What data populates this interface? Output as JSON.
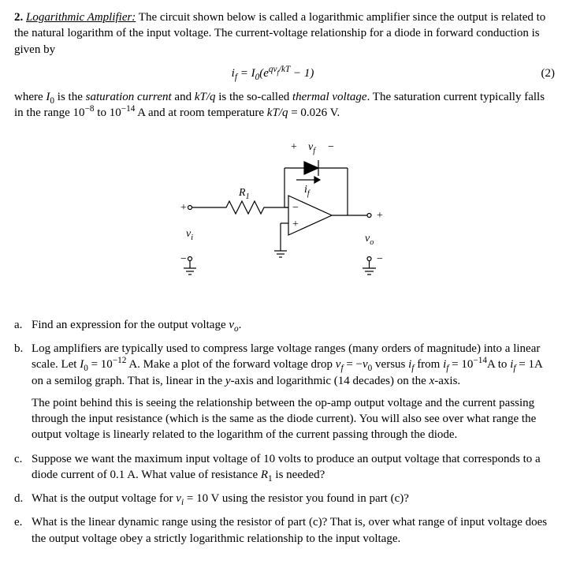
{
  "problem": {
    "number": "2.",
    "title_ul_it": "Logarithmic Amplifier:",
    "intro_a": " The circuit shown below is called a logarithmic amplifier since the output is related to the natural logarithm of the input voltage.  The current-voltage relationship for a diode in forward conduction is given by",
    "equation_html": "i<sub>f</sub> = I<sub>0</sub>(e<sup>qv<sub>f</sub>/kT</sup> − 1)",
    "equation_number": "(2)",
    "intro_b_html": "where <span class=\"it\">I</span><sub>0</sub> is the <span class=\"it\">saturation current</span> and <span class=\"it\">kT/q</span> is the so-called <span class=\"it\">thermal voltage</span>.  The saturation current typically falls in the range 10<sup>−8</sup> to 10<sup>−14</sup> A and at room temperature <span class=\"it\">kT/q</span> = 0.026 V."
  },
  "diagram": {
    "labels": {
      "vf_plus": "+",
      "vf": "v",
      "vf_sub": "f",
      "vf_minus": "−",
      "if": "i",
      "if_sub": "f",
      "R1": "R",
      "R1_sub": "1",
      "vi_plus": "+",
      "vi": "v",
      "vi_sub": "i",
      "vi_minus": "−",
      "vo_plus": "+",
      "vo": "v",
      "vo_sub": "o",
      "vo_minus": "−",
      "opamp_minus": "−",
      "opamp_plus": "+"
    },
    "style": {
      "stroke": "#000000",
      "stroke_width": 1.2,
      "fill_shape": "#000000",
      "font_family": "Times New Roman",
      "font_size_label": 14,
      "font_size_sub": 10,
      "font_style": "italic"
    }
  },
  "parts": {
    "a": {
      "label": "a.",
      "html": "Find an expression for the output voltage <span class=\"it\">v<sub>o</sub></span>."
    },
    "b": {
      "label": "b.",
      "p1_html": "Log amplifiers are typically used to compress large voltage ranges (many orders of magnitude) into a linear scale.  Let <span class=\"it\">I</span><sub>0</sub> = 10<sup>−12</sup> A. Make a plot of the forward voltage drop <span class=\"it\">v<sub>f</sub></span> = −<span class=\"it\">v</span><sub>0</sub> versus <span class=\"it\">i<sub>f</sub></span> from <span class=\"it\">i<sub>f</sub></span> = 10<sup>−14</sup>A to <span class=\"it\">i<sub>f</sub></span> = 1A on a semilog graph.  That is, linear in the <span class=\"it\">y</span>-axis and logarithmic (14 decades) on the <span class=\"it\">x</span>-axis.",
      "p2_html": "The point behind this is seeing the relationship between the op-amp output voltage and the current passing through the input resistance (which is the same as the diode current).  You will also see over what range the output voltage is linearly related to the logarithm of the current passing through the diode."
    },
    "c": {
      "label": "c.",
      "html": "Suppose we want the maximum input voltage of 10 volts to produce an output voltage that corresponds to a diode current of 0.1 A. What value of resistance <span class=\"it\">R</span><sub>1</sub> is needed?"
    },
    "d": {
      "label": "d.",
      "html": "What is the output voltage for <span class=\"it\">v<sub>i</sub></span> = 10 V using the resistor you found in part (c)?"
    },
    "e": {
      "label": "e.",
      "html": "What is the linear dynamic range using the resistor of part (c)? That is, over what range of input voltage does the output voltage obey a strictly logarithmic relationship to the input voltage."
    }
  }
}
